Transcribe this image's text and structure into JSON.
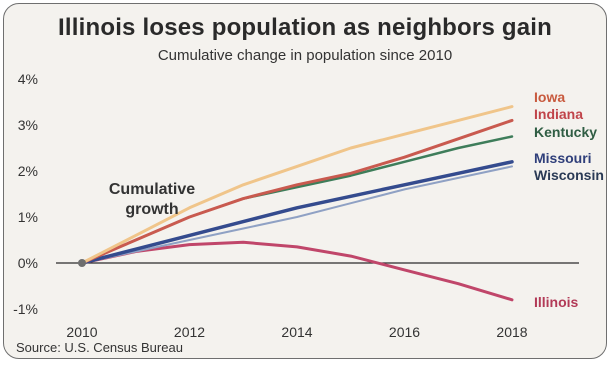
{
  "header": {
    "title": "Illinois loses population as neighbors gain",
    "subtitle": "Cumulative change in population since 2010"
  },
  "footer": {
    "source": "Source: U.S. Census Bureau"
  },
  "colors": {
    "Iowa": "#f0c58a",
    "Indiana": "#c95a4f",
    "Kentucky": "#3e7d5a",
    "Missouri": "#344b8e",
    "Wisconsin": "#8fa1c4",
    "Illinois": "#c0466a",
    "card_bg": "#f4f2ee"
  },
  "chart_data": {
    "type": "line",
    "annotation": [
      "Cumulative",
      "growth"
    ],
    "x": [
      2010,
      2011,
      2012,
      2013,
      2014,
      2015,
      2016,
      2017,
      2018
    ],
    "x_ticks": [
      "2010",
      "2012",
      "2014",
      "2016",
      "2018"
    ],
    "y_ticks": [
      "4%",
      "3%",
      "2%",
      "1%",
      "0%",
      "-1%"
    ],
    "xlim": [
      2010,
      2018
    ],
    "ylim": [
      -1,
      4
    ],
    "series": [
      {
        "name": "Iowa",
        "values": [
          0,
          0.6,
          1.2,
          1.7,
          2.1,
          2.5,
          2.8,
          3.1,
          3.4
        ]
      },
      {
        "name": "Indiana",
        "values": [
          0,
          0.5,
          1.0,
          1.4,
          1.7,
          1.95,
          2.3,
          2.7,
          3.1
        ]
      },
      {
        "name": "Kentucky",
        "values": [
          0,
          0.5,
          1.0,
          1.4,
          1.65,
          1.9,
          2.2,
          2.5,
          2.75
        ]
      },
      {
        "name": "Missouri",
        "values": [
          0,
          0.3,
          0.6,
          0.9,
          1.2,
          1.45,
          1.7,
          1.95,
          2.2
        ]
      },
      {
        "name": "Wisconsin",
        "values": [
          0,
          0.25,
          0.5,
          0.75,
          1.0,
          1.3,
          1.6,
          1.85,
          2.1
        ]
      },
      {
        "name": "Illinois",
        "values": [
          0,
          0.25,
          0.4,
          0.45,
          0.35,
          0.15,
          -0.15,
          -0.45,
          -0.8
        ]
      }
    ],
    "legend_labels": [
      "Iowa",
      "Indiana",
      "Kentucky",
      "Missouri",
      "Wisconsin",
      "Illinois"
    ]
  }
}
